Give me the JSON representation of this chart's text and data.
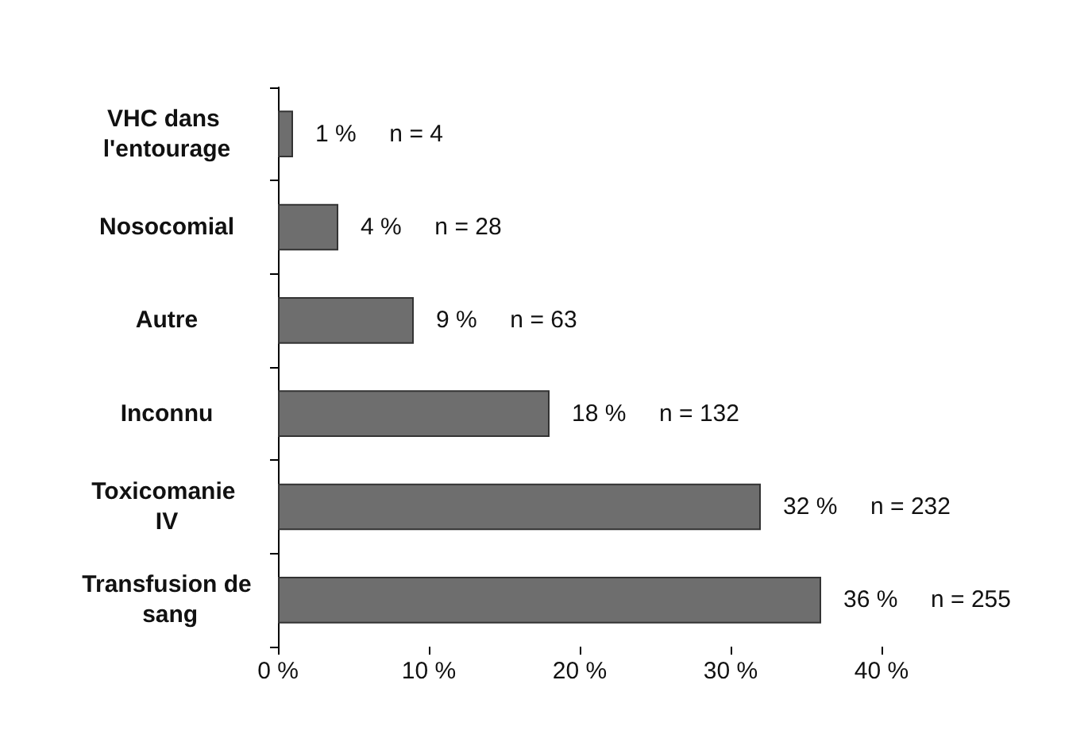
{
  "chart_data": {
    "type": "bar",
    "orientation": "horizontal",
    "categories": [
      "VHC dans l'entourage",
      "Nosocomial",
      "Autre",
      "Inconnu",
      "Toxicomanie IV",
      "Transfusion de sang"
    ],
    "values": [
      1,
      4,
      9,
      18,
      32,
      36
    ],
    "value_labels": [
      "1 %     n = 4",
      "4 %     n = 28",
      "9 %     n = 63",
      "18 %     n = 132",
      "32 %     n = 232",
      "36 %     n = 255"
    ],
    "color": "#6e6e6e",
    "xlim": [
      0,
      40
    ],
    "xticks": [
      {
        "value": 0,
        "label": "0 %"
      },
      {
        "value": 10,
        "label": "10 %"
      },
      {
        "value": 20,
        "label": "20 %"
      },
      {
        "value": 30,
        "label": "30 %"
      },
      {
        "value": 40,
        "label": "40 %"
      }
    ],
    "grid": false
  }
}
